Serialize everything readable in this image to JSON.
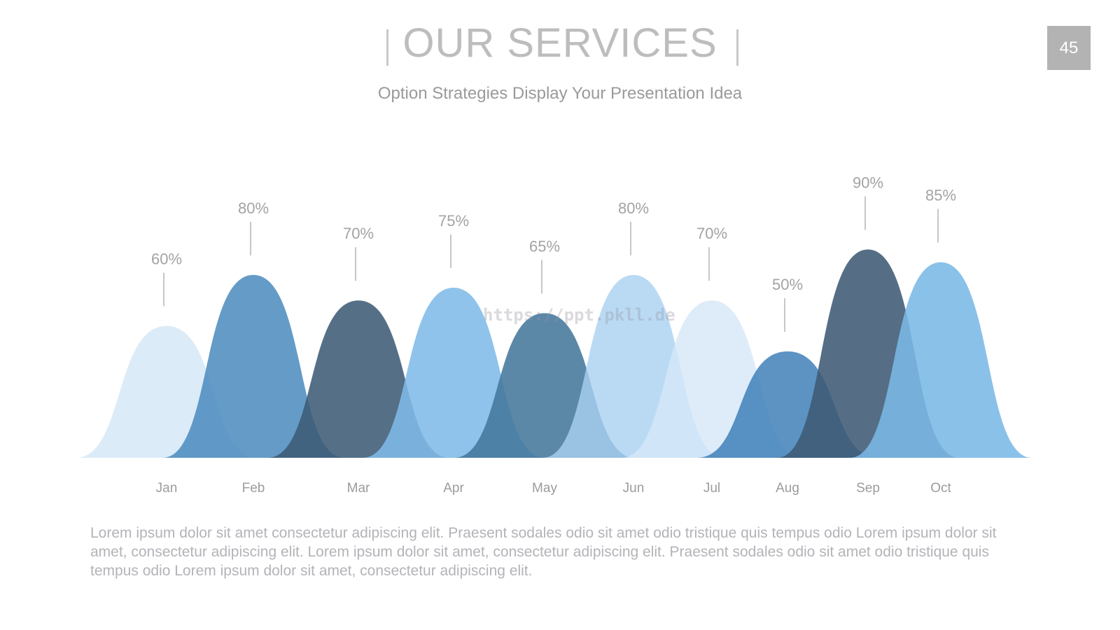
{
  "title": "OUR SERVICES",
  "subtitle": "Option Strategies Display Your Presentation Idea",
  "page_number": "45",
  "watermark": "https://ppt.pkll.de",
  "body_text": "Lorem ipsum dolor sit amet consectetur adipiscing elit. Praesent sodales odio sit amet odio tristique quis tempus odio Lorem ipsum dolor sit amet, consectetur adipiscing elit. Lorem ipsum dolor sit amet, consectetur adipiscing elit. Praesent sodales odio sit amet odio tristique quis tempus odio Lorem ipsum dolor sit amet, consectetur adipiscing elit.",
  "colors": {
    "title": "#bdbdbd",
    "text": "#9a9a9a",
    "badge": "#b3b3b3"
  },
  "chart_data": {
    "type": "area",
    "categories": [
      "Jan",
      "Feb",
      "Mar",
      "Apr",
      "May",
      "Jun",
      "Jul",
      "Aug",
      "Sep",
      "Oct"
    ],
    "values": [
      60,
      80,
      70,
      75,
      65,
      80,
      70,
      50,
      90,
      85
    ],
    "data_labels": [
      "60%",
      "80%",
      "70%",
      "75%",
      "65%",
      "80%",
      "70%",
      "50%",
      "90%",
      "85%"
    ],
    "colors": [
      "#d6e7f7",
      "#4f8dbf",
      "#3e5b76",
      "#7fbbe8",
      "#46779c",
      "#a9d1f1",
      "#d6e7f7",
      "#3f80b8",
      "#3d5a74",
      "#7ab8e6"
    ],
    "opacities": [
      0.85,
      0.88,
      0.88,
      0.88,
      0.88,
      0.8,
      0.8,
      0.85,
      0.88,
      0.88
    ],
    "ylim": [
      0,
      100
    ],
    "grid": false,
    "legend": "none",
    "xlabel": "",
    "ylabel": ""
  }
}
